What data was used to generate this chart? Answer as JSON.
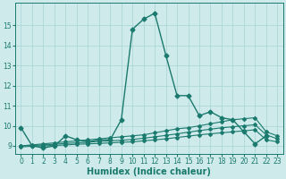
{
  "xlabel": "Humidex (Indice chaleur)",
  "ylabel": "",
  "xlim": [
    -0.5,
    23.5
  ],
  "ylim": [
    8.6,
    16.1
  ],
  "bg_color": "#ceeaea",
  "grid_color": "#a8d4d4",
  "line_color": "#1a7a6e",
  "series": [
    {
      "x": [
        0,
        1,
        2,
        3,
        4,
        5,
        6,
        7,
        8,
        9,
        10,
        11,
        12,
        13,
        14,
        15,
        16,
        17,
        18,
        19,
        20,
        21,
        22
      ],
      "y": [
        9.9,
        9.0,
        8.9,
        9.0,
        9.5,
        9.3,
        9.2,
        9.3,
        9.3,
        10.3,
        14.8,
        15.3,
        15.6,
        13.5,
        11.5,
        11.5,
        10.5,
        10.7,
        10.4,
        10.3,
        9.7,
        9.1,
        9.5
      ],
      "marker": "D",
      "markersize": 2.5,
      "linewidth": 1.0,
      "linestyle": "-"
    },
    {
      "x": [
        0,
        1,
        2,
        3,
        4,
        5,
        6,
        7,
        8,
        9,
        10,
        11,
        12,
        13,
        14,
        15,
        16,
        17,
        18,
        19,
        20,
        21,
        22,
        23
      ],
      "y": [
        9.0,
        9.05,
        9.1,
        9.15,
        9.2,
        9.25,
        9.3,
        9.35,
        9.4,
        9.45,
        9.5,
        9.55,
        9.65,
        9.75,
        9.85,
        9.9,
        10.0,
        10.1,
        10.2,
        10.3,
        10.35,
        10.4,
        9.7,
        9.5
      ],
      "marker": "D",
      "markersize": 2.0,
      "linewidth": 0.8,
      "linestyle": "-"
    },
    {
      "x": [
        0,
        1,
        2,
        3,
        4,
        5,
        6,
        7,
        8,
        9,
        10,
        11,
        12,
        13,
        14,
        15,
        16,
        17,
        18,
        19,
        20,
        21,
        22,
        23
      ],
      "y": [
        9.0,
        9.02,
        9.05,
        9.08,
        9.12,
        9.15,
        9.18,
        9.22,
        9.25,
        9.28,
        9.32,
        9.38,
        9.45,
        9.52,
        9.6,
        9.68,
        9.76,
        9.83,
        9.9,
        9.95,
        10.0,
        10.05,
        9.55,
        9.35
      ],
      "marker": "D",
      "markersize": 2.0,
      "linewidth": 0.8,
      "linestyle": "-"
    },
    {
      "x": [
        0,
        1,
        2,
        3,
        4,
        5,
        6,
        7,
        8,
        9,
        10,
        11,
        12,
        13,
        14,
        15,
        16,
        17,
        18,
        19,
        20,
        21,
        22,
        23
      ],
      "y": [
        8.95,
        8.98,
        9.0,
        9.02,
        9.05,
        9.08,
        9.1,
        9.12,
        9.15,
        9.18,
        9.2,
        9.25,
        9.3,
        9.35,
        9.42,
        9.48,
        9.55,
        9.6,
        9.65,
        9.7,
        9.75,
        9.8,
        9.3,
        9.2
      ],
      "marker": "D",
      "markersize": 2.0,
      "linewidth": 0.8,
      "linestyle": "-"
    }
  ],
  "xticks": [
    0,
    1,
    2,
    3,
    4,
    5,
    6,
    7,
    8,
    9,
    10,
    11,
    12,
    13,
    14,
    15,
    16,
    17,
    18,
    19,
    20,
    21,
    22,
    23
  ],
  "yticks": [
    9,
    10,
    11,
    12,
    13,
    14,
    15
  ],
  "tick_fontsize": 5.5,
  "label_fontsize": 7.0
}
